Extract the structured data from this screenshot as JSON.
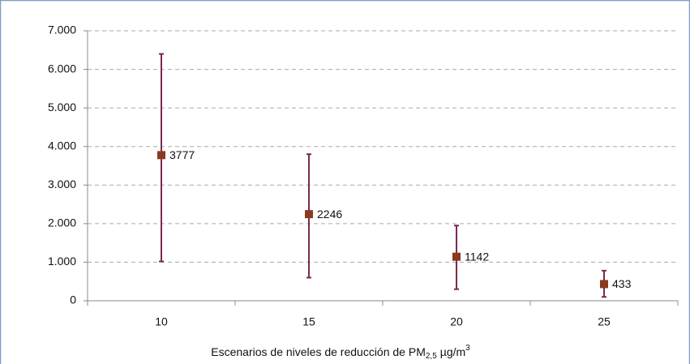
{
  "chart_data": {
    "type": "errorpoint",
    "categories": [
      "10",
      "15",
      "20",
      "25"
    ],
    "series": [
      {
        "color": "#8b3a1f",
        "error_color": "#7a2a52",
        "values": [
          3777,
          2246,
          1142,
          433
        ],
        "lower": [
          1020,
          600,
          300,
          100
        ],
        "upper": [
          6400,
          3800,
          1950,
          780
        ]
      }
    ],
    "ylim": [
      0,
      7000
    ],
    "yticks": [
      0,
      {
        "value": 1000,
        "label": "1.000"
      },
      {
        "value": 2000,
        "label": "2.000"
      },
      {
        "value": 3000,
        "label": "3.000"
      },
      {
        "value": 4000,
        "label": "4.000"
      },
      {
        "value": 5000,
        "label": "5.000"
      },
      {
        "value": 6000,
        "label": "6.000"
      },
      {
        "value": 7000,
        "label": "7.000"
      }
    ],
    "grid": true,
    "x_label": {
      "text": "Escenarios de niveles de reducción de PM",
      "sub": "2,5",
      "unit": "µg/m",
      "sup": "3"
    }
  }
}
